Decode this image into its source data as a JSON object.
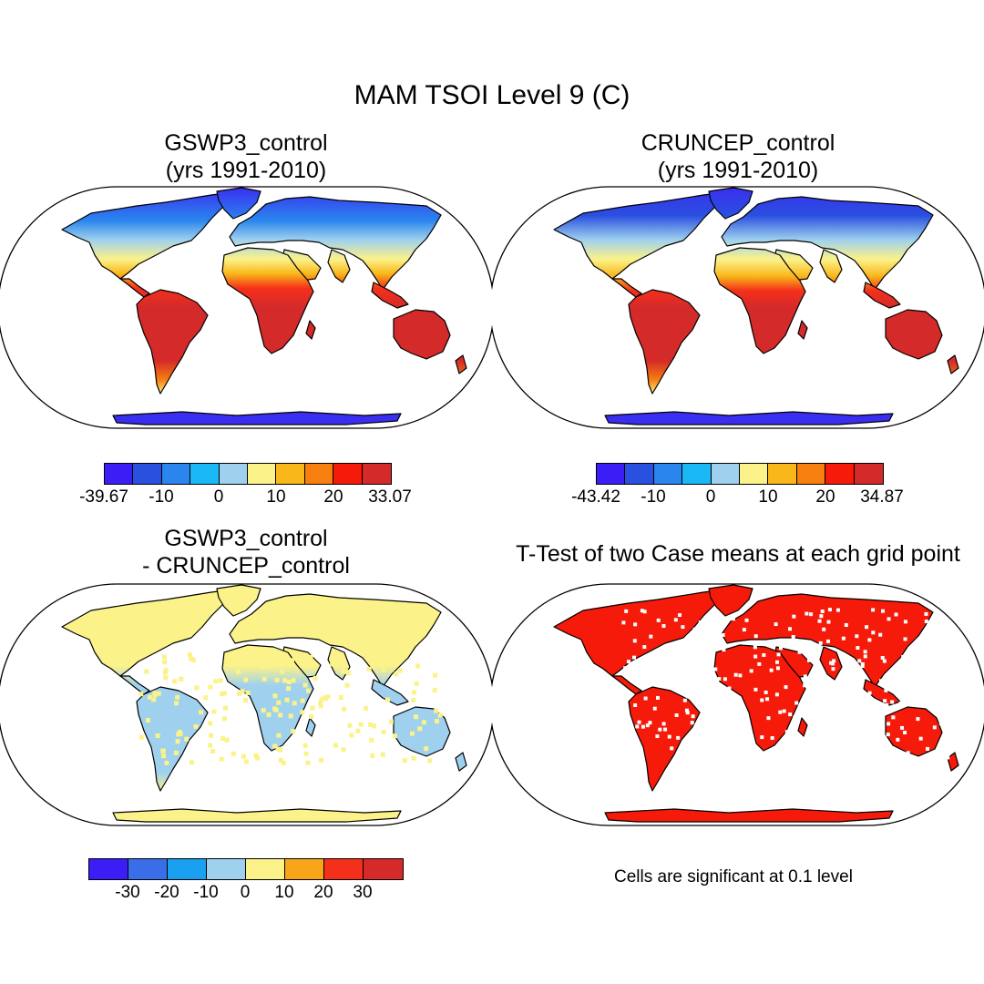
{
  "title": "MAM TSOI Level 9 (C)",
  "panels": [
    {
      "id": "gswp3",
      "title_line1": "GSWP3_control",
      "title_line2": "(yrs 1991-2010)"
    },
    {
      "id": "cruncep",
      "title_line1": "CRUNCEP_control",
      "title_line2": "(yrs 1991-2010)"
    },
    {
      "id": "diff",
      "title_line1": "GSWP3_control",
      "title_line2": "- CRUNCEP_control"
    },
    {
      "id": "ttest",
      "title_line1": "T-Test of two Case means at each grid point"
    }
  ],
  "colorbars": {
    "gswp3": {
      "colors": [
        "#3a1ef5",
        "#2a50e0",
        "#2a86ee",
        "#1ab8f5",
        "#9fd1ee",
        "#fbf28a",
        "#f9b71a",
        "#f77f0f",
        "#f51a0a",
        "#d42a2a"
      ],
      "labels": [
        "-39.67",
        "-10",
        "0",
        "10",
        "20",
        "33.07"
      ]
    },
    "cruncep": {
      "colors": [
        "#3a1ef5",
        "#2a50e0",
        "#2a86ee",
        "#1ab8f5",
        "#9fd1ee",
        "#fbf28a",
        "#f9b71a",
        "#f77f0f",
        "#f51a0a",
        "#d42a2a"
      ],
      "labels": [
        "-43.42",
        "-10",
        "0",
        "10",
        "20",
        "34.87"
      ]
    },
    "diff": {
      "colors": [
        "#3a1ef5",
        "#3a6ee8",
        "#1aa0f0",
        "#9fd1ee",
        "#fbf28a",
        "#f9a51a",
        "#f5301a",
        "#d42a2a"
      ],
      "labels": [
        "-30",
        "-20",
        "-10",
        "0",
        "10",
        "20",
        "30"
      ]
    }
  },
  "ttest_note": "Cells are significant at 0.1 level"
}
